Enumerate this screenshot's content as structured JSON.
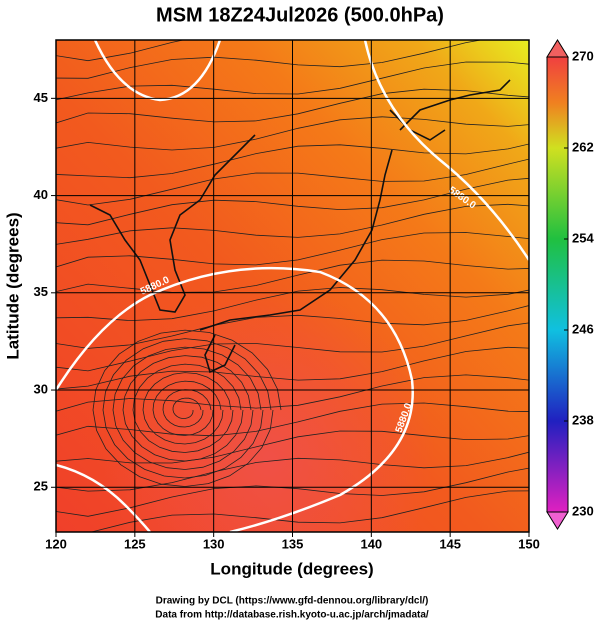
{
  "chart_data": {
    "type": "map",
    "title": "MSM 18Z24Jul2026 (500.0hPa)",
    "xlabel": "Longitude (degrees)",
    "ylabel": "Latitude  (degrees)",
    "xlim": [
      120,
      150
    ],
    "xticks": [
      120,
      125,
      130,
      135,
      140,
      145,
      150
    ],
    "ylim": [
      22.7,
      48
    ],
    "yticks": [
      25,
      30,
      35,
      40,
      45
    ],
    "colorbar": {
      "lim": [
        230,
        270
      ],
      "ticks": [
        230,
        238,
        246,
        254,
        262,
        270
      ]
    },
    "contour_labels": [
      "5880.0",
      "5880.0",
      "5880.0"
    ],
    "footer": [
      "Drawing by DCL (https://www.gfd-dennou.org/library/dcl/)",
      "Data from http://database.rish.kyoto-u.ac.jp/arch/jmadata/"
    ]
  }
}
